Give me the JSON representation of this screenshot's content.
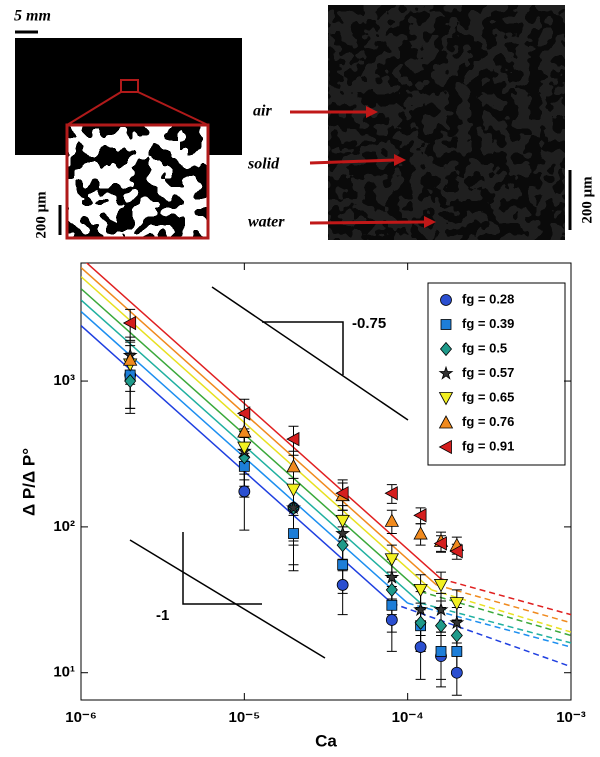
{
  "panels": {
    "scale_left_top": "5 mm",
    "scale_left_bottom": "200 μm",
    "scale_right": "200 μm",
    "labels": [
      "air",
      "solid",
      "water"
    ]
  },
  "chart_data": {
    "type": "scatter",
    "xlabel": "Ca",
    "ylabel": "Δ P/Δ P°",
    "xscale": "log",
    "yscale": "log",
    "legend": "upper right",
    "xlim": [
      1e-06,
      0.001
    ],
    "ylim": [
      6.5,
      6450
    ],
    "xticks": [
      {
        "value": 1e-06,
        "label": "10⁻⁶"
      },
      {
        "value": 1e-05,
        "label": "10⁻⁵"
      },
      {
        "value": 0.0001,
        "label": "10⁻⁴"
      },
      {
        "value": 0.001,
        "label": "10⁻³"
      }
    ],
    "yticks": [
      {
        "value": 10,
        "label": "10¹"
      },
      {
        "value": 100,
        "label": "10²"
      },
      {
        "value": 1000,
        "label": "10³"
      }
    ],
    "x": [
      2e-06,
      1e-05,
      2e-05,
      4e-05,
      8e-05,
      0.00012,
      0.00016,
      0.0002
    ],
    "annotations": [
      "-0.75",
      "-1"
    ],
    "series": [
      {
        "name": "fg = 0.28",
        "color": "#2b4fd0",
        "line_color": "#1f3fe0",
        "marker": "o",
        "values": [
          1100,
          175,
          135,
          40,
          23,
          15,
          13,
          10
        ],
        "errors": [
          450,
          80,
          80,
          15,
          9,
          6,
          5,
          3
        ],
        "fit_x": [
          1e-06,
          8e-05,
          0.001
        ],
        "fit": [
          2400,
          30,
          11
        ]
      },
      {
        "name": "fg = 0.39",
        "color": "#1d7ed8",
        "line_color": "#1c8ff0",
        "marker": "s",
        "values": [
          1100,
          260,
          90,
          55,
          29,
          21,
          14,
          14
        ],
        "errors": [
          450,
          100,
          40,
          20,
          10,
          7,
          5,
          4
        ],
        "fit_x": [
          1e-06,
          0.0001,
          0.001
        ],
        "fit": [
          3000,
          30,
          15
        ]
      },
      {
        "name": "fg = 0.5",
        "color": "#1f9a8a",
        "line_color": "#20b0a0",
        "marker": "d",
        "values": [
          1000,
          300,
          135,
          75,
          37,
          22,
          21,
          18
        ],
        "errors": [
          400,
          110,
          60,
          25,
          12,
          8,
          7,
          5
        ],
        "fit_x": [
          1e-06,
          0.00012,
          0.001
        ],
        "fit": [
          3600,
          30,
          16
        ]
      },
      {
        "name": "fg = 0.57",
        "color": "#333333",
        "line_color": "#3aa83a",
        "marker": "*",
        "values": [
          1500,
          330,
          135,
          90,
          45,
          27,
          27,
          22
        ],
        "errors": [
          500,
          120,
          55,
          30,
          15,
          9,
          8,
          6
        ],
        "fit_x": [
          1e-06,
          0.00012,
          0.001
        ],
        "fit": [
          4300,
          36,
          18
        ]
      },
      {
        "name": "fg = 0.65",
        "color": "#f2f020",
        "line_color": "#e8e020",
        "marker": "v",
        "values": [
          1300,
          350,
          180,
          110,
          60,
          37,
          40,
          30
        ],
        "errors": [
          450,
          120,
          60,
          30,
          15,
          10,
          9,
          7
        ],
        "fit_x": [
          1e-06,
          0.00014,
          0.001
        ],
        "fit": [
          5200,
          37,
          19
        ]
      },
      {
        "name": "fg = 0.76",
        "color": "#f08a1e",
        "line_color": "#f08a1e",
        "marker": "^",
        "values": [
          1400,
          450,
          260,
          165,
          110,
          90,
          80,
          75
        ],
        "errors": [
          450,
          130,
          70,
          35,
          20,
          15,
          12,
          10
        ],
        "fit_x": [
          1e-06,
          0.00015,
          0.001
        ],
        "fit": [
          6000,
          40,
          22
        ]
      },
      {
        "name": "fg = 0.91",
        "color": "#d41e1e",
        "line_color": "#e02020",
        "marker": "<",
        "values": [
          2500,
          600,
          400,
          170,
          170,
          120,
          77,
          68
        ],
        "errors": [
          600,
          150,
          90,
          40,
          25,
          15,
          10,
          8
        ],
        "fit_x": [
          1e-06,
          0.00016,
          0.001
        ],
        "fit": [
          7000,
          44,
          25
        ]
      }
    ]
  }
}
